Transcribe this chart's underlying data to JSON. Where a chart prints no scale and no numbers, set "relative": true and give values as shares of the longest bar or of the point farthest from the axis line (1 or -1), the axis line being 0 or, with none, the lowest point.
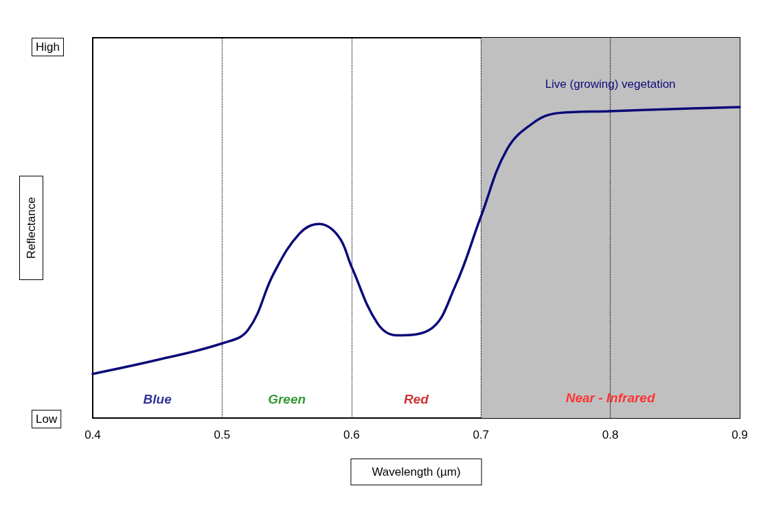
{
  "chart_data": {
    "type": "line",
    "relative": true,
    "xlabel": "Wavelength (µm)",
    "ylabel": "Reflectance",
    "x": [
      0.4,
      0.45,
      0.5,
      0.52,
      0.54,
      0.56,
      0.575,
      0.59,
      0.6,
      0.62,
      0.635,
      0.66,
      0.68,
      0.7,
      0.72,
      0.74,
      0.76,
      0.8,
      0.85,
      0.9
    ],
    "xlim": [
      0.4,
      0.9
    ],
    "xticks": [
      0.4,
      0.5,
      0.6,
      0.7,
      0.8,
      0.9
    ],
    "grid": false,
    "legend": false,
    "marker": "none",
    "line_style": "solid",
    "series": [
      {
        "name": "Live (growing) vegetation",
        "color": "#0a0a78",
        "values": [
          0.142,
          0.187,
          0.24,
          0.283,
          0.466,
          0.594,
          0.624,
          0.584,
          0.487,
          0.305,
          0.266,
          0.283,
          0.423,
          0.648,
          0.863,
          0.948,
          0.981,
          0.987,
          0.994,
          1
        ]
      }
    ],
    "ref_lines": [
      {
        "axis": "x",
        "value": 0.5,
        "line_style": "dotted"
      },
      {
        "axis": "x",
        "value": 0.6,
        "line_style": "dotted"
      },
      {
        "axis": "x",
        "value": 0.7,
        "line_style": "dotted"
      },
      {
        "axis": "x",
        "value": 0.8,
        "line_style": "dotted"
      }
    ],
    "bands": [
      {
        "axis": "x",
        "from": 0.7,
        "to": 0.9,
        "label": "Near - Infrared",
        "color": "#c0c0c0"
      }
    ],
    "annotations": [
      "High",
      "Low",
      "Blue",
      "Green",
      "Red"
    ]
  }
}
